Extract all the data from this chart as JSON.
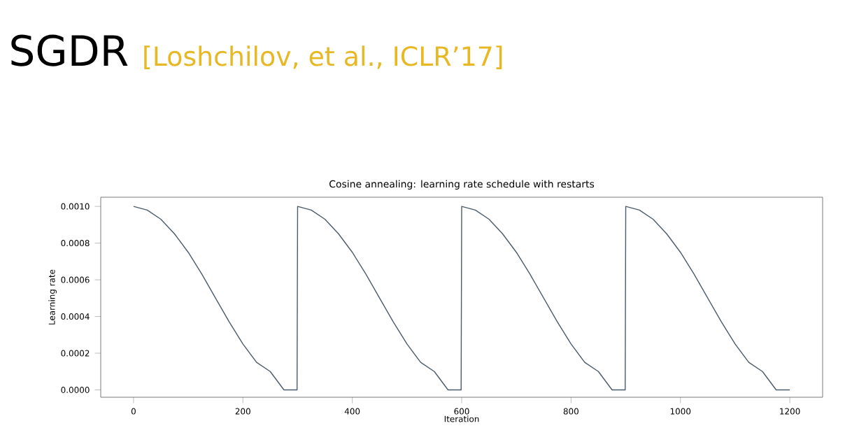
{
  "chart_data": {
    "type": "line",
    "title": "Cosine annealing: learning rate schedule with restarts",
    "annotations": [
      "SGDR",
      "[Loshchilov, et al., ICLR’17]"
    ],
    "xlabel": "Iteration",
    "ylabel": "Learning rate",
    "x": [
      0,
      25,
      50,
      75,
      100,
      125,
      150,
      175,
      200,
      225,
      250,
      275,
      299,
      300,
      325,
      350,
      375,
      400,
      425,
      450,
      475,
      500,
      525,
      550,
      575,
      599,
      600,
      625,
      650,
      675,
      700,
      725,
      750,
      775,
      800,
      825,
      850,
      875,
      899,
      900,
      925,
      950,
      975,
      1000,
      1025,
      1050,
      1075,
      1100,
      1125,
      1150,
      1175,
      1200
    ],
    "series": [
      {
        "color": "#4a5b6c",
        "values": [
          0.001,
          0.00098,
          0.00093,
          0.00085,
          0.00075,
          0.00063,
          0.0005,
          0.00037,
          0.00025,
          0.00015,
          0.0001,
          0,
          0,
          0.001,
          0.00098,
          0.00093,
          0.00085,
          0.00075,
          0.00063,
          0.0005,
          0.00037,
          0.00025,
          0.00015,
          0.0001,
          0,
          0,
          0.001,
          0.00098,
          0.00093,
          0.00085,
          0.00075,
          0.00063,
          0.0005,
          0.00037,
          0.00025,
          0.00015,
          0.0001,
          0,
          0,
          0.001,
          0.00098,
          0.00093,
          0.00085,
          0.00075,
          0.00063,
          0.0005,
          0.00037,
          0.00025,
          0.00015,
          0.0001,
          0,
          0
        ]
      }
    ],
    "xlim": [
      -60,
      1260
    ],
    "ylim": [
      -4e-05,
      0.00105
    ],
    "xticks": [
      0,
      200,
      400,
      600,
      800,
      1000,
      1200
    ],
    "yticks": [
      {
        "value": 0,
        "label": "0.0000"
      },
      {
        "value": 0.0002,
        "label": "0.0002"
      },
      {
        "value": 0.0004,
        "label": "0.0004"
      },
      {
        "value": 0.0006,
        "label": "0.0006"
      },
      {
        "value": 0.0008,
        "label": "0.0008"
      },
      {
        "value": 0.001,
        "label": "0.0010"
      }
    ],
    "grid": false
  }
}
